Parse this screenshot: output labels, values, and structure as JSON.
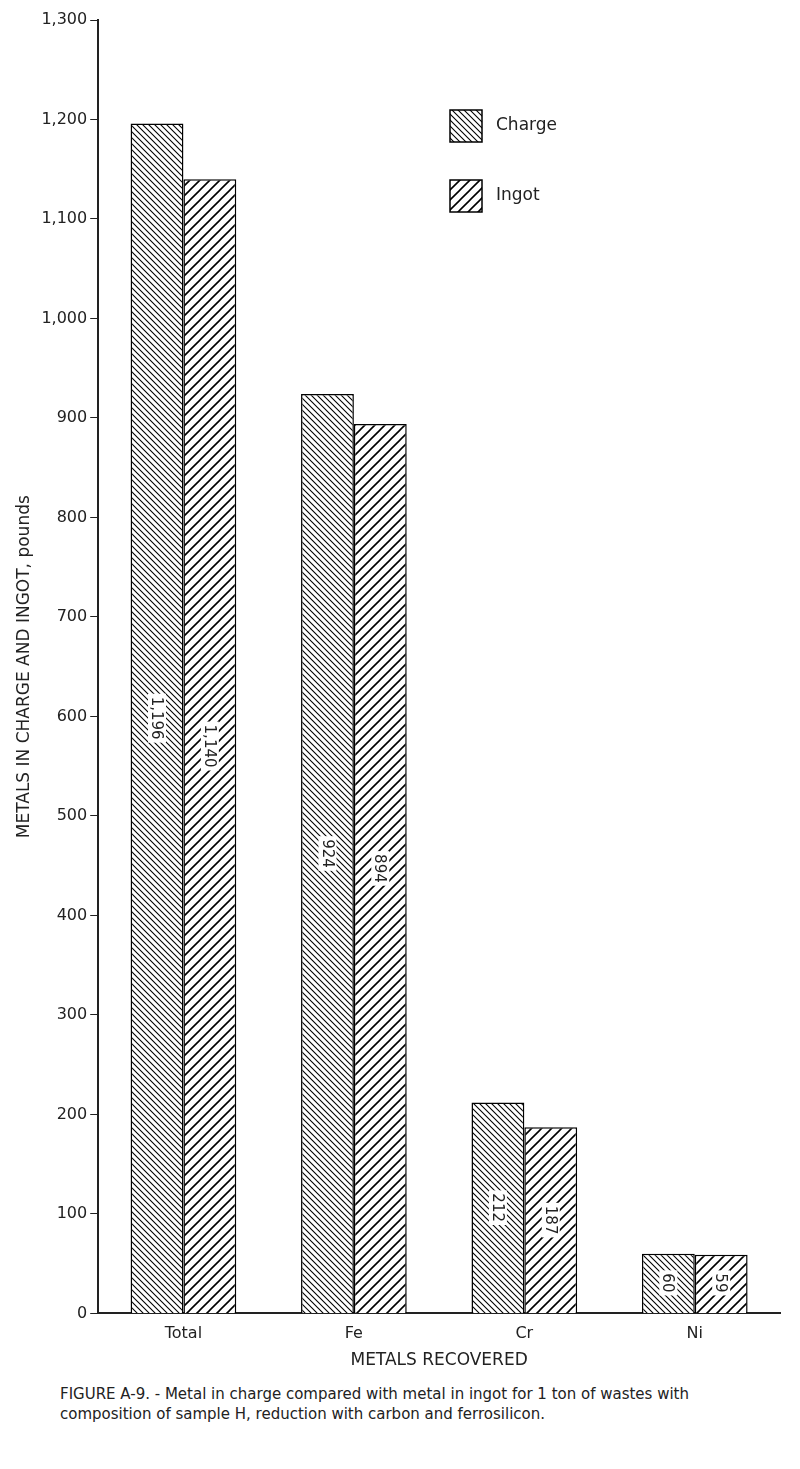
{
  "chart_data": {
    "type": "bar",
    "title": "FIGURE A-9. - Metal in charge compared with metal in ingot for 1 ton of wastes with composition of sample H, reduction with carbon and ferrosilicon.",
    "x_label": "METALS RECOVERED",
    "y_label": "METALS IN CHARGE AND INGOT, pounds",
    "categories": [
      "Total",
      "Fe",
      "Cr",
      "Ni"
    ],
    "series": [
      {
        "name": "Charge",
        "color": "#000000",
        "values": [
          1196,
          924,
          212,
          60
        ],
        "value_labels": [
          "1,196",
          "924",
          "212",
          "60"
        ]
      },
      {
        "name": "Ingot",
        "color": "#000000",
        "values": [
          1140,
          894,
          187,
          59
        ],
        "value_labels": [
          "1,140",
          "894",
          "187",
          "59"
        ]
      }
    ],
    "ylim": [
      0,
      1300
    ],
    "yticks": [
      0,
      100,
      200,
      300,
      400,
      500,
      600,
      700,
      800,
      900,
      {
        "value": 1000,
        "label": "1,000"
      },
      {
        "value": 1100,
        "label": "1,100"
      },
      {
        "value": 1200,
        "label": "1,200"
      },
      {
        "value": 1300,
        "label": "1,300"
      }
    ],
    "grid": false,
    "legend": "upper right",
    "data_labels": true
  }
}
